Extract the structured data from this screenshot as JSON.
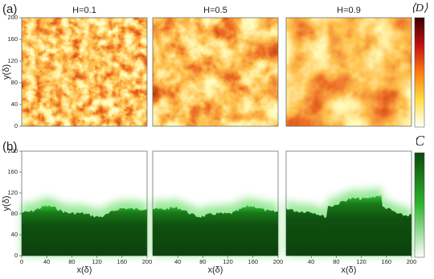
{
  "panel_labels": [
    "(a)",
    "(b)"
  ],
  "colorbar_labels": [
    "⟨D⟩",
    "C"
  ],
  "chart_data": [
    {
      "type": "heatmap",
      "colormap": "hot",
      "title": "H=0.1",
      "ylabel": "y(δ)",
      "xlim": [
        0,
        200
      ],
      "ylim": [
        0,
        200
      ],
      "yticks": [
        0,
        40,
        80,
        120,
        160,
        200
      ]
    },
    {
      "type": "heatmap",
      "colormap": "hot",
      "title": "H=0.5",
      "xlim": [
        0,
        200
      ],
      "ylim": [
        0,
        200
      ]
    },
    {
      "type": "heatmap",
      "colormap": "hot",
      "title": "H=0.9",
      "xlim": [
        0,
        200
      ],
      "ylim": [
        0,
        200
      ]
    },
    {
      "type": "heatmap",
      "colormap": "green",
      "ylabel": "y(δ)",
      "xlabel": "x(δ)",
      "xlim": [
        0,
        200
      ],
      "ylim": [
        0,
        200
      ],
      "xticks": [
        0,
        40,
        80,
        120,
        160,
        200
      ],
      "yticks": [
        0,
        40,
        80,
        120,
        160,
        200
      ]
    },
    {
      "type": "heatmap",
      "colormap": "green",
      "xlabel": "x(δ)",
      "xlim": [
        0,
        200
      ],
      "ylim": [
        0,
        200
      ],
      "xticks": [
        40,
        80,
        120,
        160,
        200
      ]
    },
    {
      "type": "heatmap",
      "colormap": "green",
      "xlabel": "x(δ)",
      "xlim": [
        0,
        200
      ],
      "ylim": [
        0,
        200
      ],
      "xticks": [
        40,
        80,
        120,
        160,
        200
      ]
    }
  ]
}
